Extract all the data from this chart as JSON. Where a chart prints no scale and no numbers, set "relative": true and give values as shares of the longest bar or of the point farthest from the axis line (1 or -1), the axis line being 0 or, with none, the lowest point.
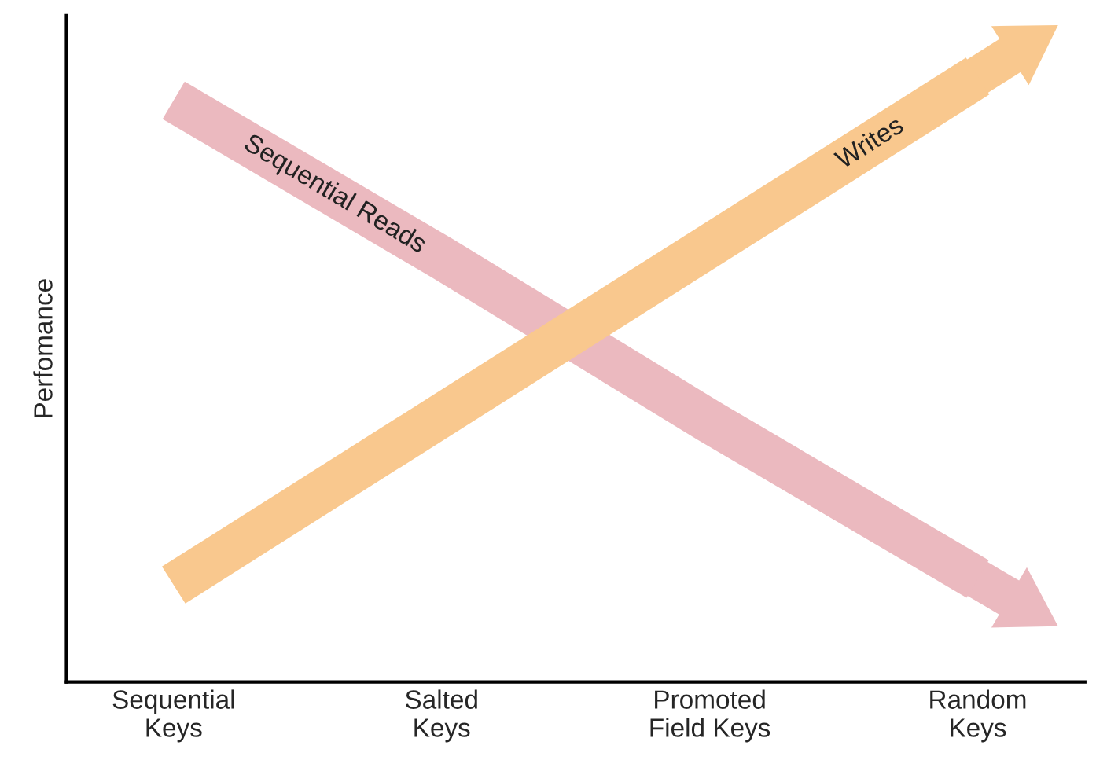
{
  "chart_data": {
    "type": "line",
    "relative": true,
    "ylabel": "Perfomance",
    "categories": [
      "Sequential\nKeys",
      "Salted\nKeys",
      "Promoted\nField Keys",
      "Random\nKeys"
    ],
    "series": [
      {
        "name": "Sequential Reads",
        "color": "#ebb9bf",
        "values": [
          0.96,
          0.7,
          0.43,
          0.17
        ]
      },
      {
        "name": "Writes",
        "color": "#f9c88e",
        "values": [
          0.16,
          0.44,
          0.72,
          1.0
        ]
      }
    ],
    "grid": false,
    "legend": false,
    "marker": "none",
    "line_style": "solid"
  }
}
